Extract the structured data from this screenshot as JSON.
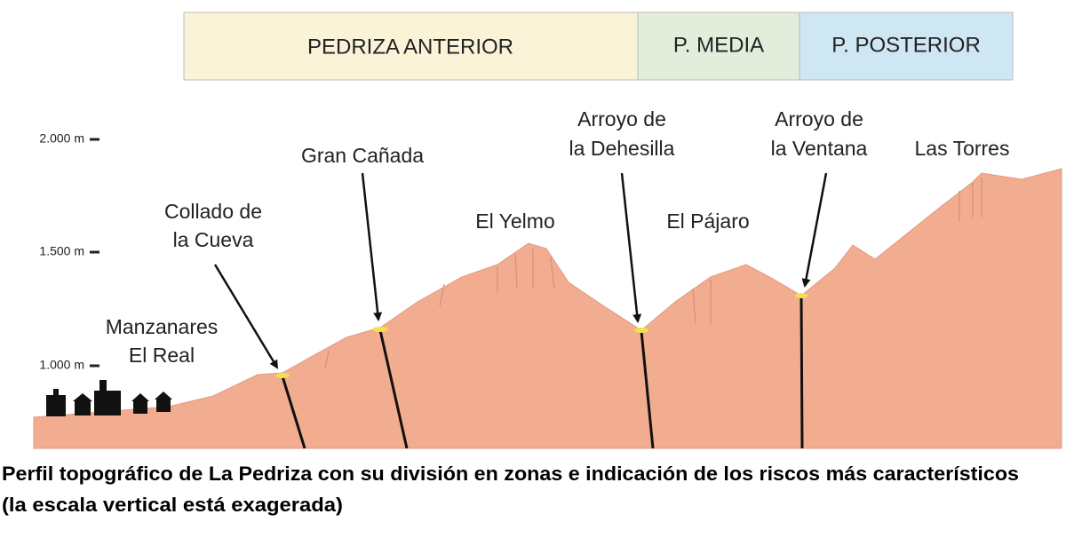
{
  "zones": [
    {
      "label": "PEDRIZA ANTERIOR"
    },
    {
      "label": "P. MEDIA"
    },
    {
      "label": "P. POSTERIOR"
    }
  ],
  "scale": [
    {
      "label": "2.000 m"
    },
    {
      "label": "1.500 m"
    },
    {
      "label": "1.000 m"
    }
  ],
  "places": [
    {
      "lines": [
        "Manzanares",
        "El Real"
      ]
    },
    {
      "lines": [
        "Collado de",
        "la Cueva"
      ]
    },
    {
      "lines": [
        "Gran Cañada"
      ]
    },
    {
      "lines": [
        "El Yelmo"
      ]
    },
    {
      "lines": [
        "Arroyo de",
        "la Dehesilla"
      ]
    },
    {
      "lines": [
        "El Pájaro"
      ]
    },
    {
      "lines": [
        "Arroyo de",
        "la Ventana"
      ]
    },
    {
      "lines": [
        "Las Torres"
      ]
    }
  ],
  "caption": {
    "lines": [
      "Perfil topográfico de La Pedriza con su división en zonas e indicación de los riscos más característicos",
      "(la escala vertical está exagerada)"
    ]
  }
}
